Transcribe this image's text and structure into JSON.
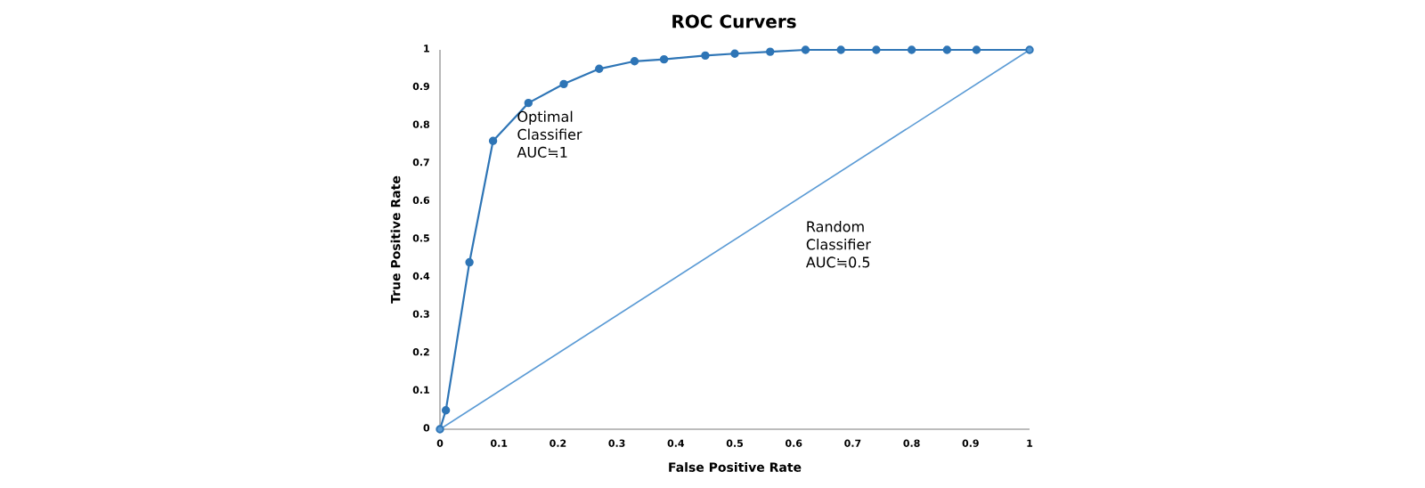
{
  "chart_data": {
    "type": "line",
    "title": "ROC Curvers",
    "xlabel": "False Positive Rate",
    "ylabel": "True Positive Rate",
    "xlim": [
      0,
      1
    ],
    "ylim": [
      0,
      1
    ],
    "xticks": [
      0,
      0.1,
      0.2,
      0.3,
      0.4,
      0.5,
      0.6,
      0.7,
      0.8,
      0.9,
      1
    ],
    "yticks": [
      0,
      0.1,
      0.2,
      0.3,
      0.4,
      0.5,
      0.6,
      0.7,
      0.8,
      0.9,
      1
    ],
    "grid": false,
    "marker": "circle",
    "series": [
      {
        "color": "#2e75b6",
        "x": [
          0,
          0.01,
          0.05,
          0.09,
          0.15,
          0.21,
          0.27,
          0.33,
          0.38,
          0.45,
          0.5,
          0.56,
          0.62,
          0.68,
          0.74,
          0.8,
          0.86,
          0.91,
          1
        ],
        "values": [
          0,
          0.05,
          0.44,
          0.76,
          0.86,
          0.91,
          0.95,
          0.97,
          0.975,
          0.985,
          0.99,
          0.995,
          1,
          1,
          1,
          1,
          1,
          1,
          1
        ]
      },
      {
        "color": "#5b9bd5",
        "x": [
          0,
          1
        ],
        "values": [
          0,
          1
        ]
      }
    ],
    "annotations": [
      "Optimal Classifier AUC≒1",
      "Random Classifier AUC≒0.5"
    ]
  }
}
